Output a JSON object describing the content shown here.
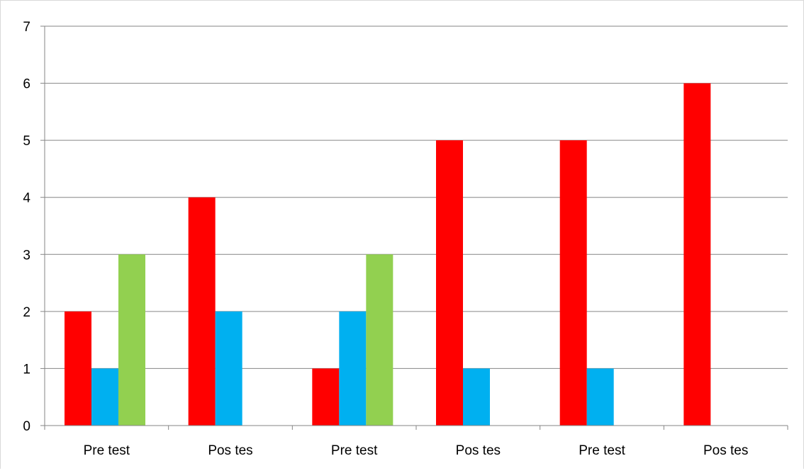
{
  "chart_data": {
    "type": "bar",
    "categories": [
      "Pre test",
      "Pos tes",
      "Pre test",
      "Pos tes",
      "Pre test",
      "Pos tes"
    ],
    "series": [
      {
        "color": "#ff0000",
        "values": [
          2,
          4,
          1,
          5,
          5,
          6
        ]
      },
      {
        "color": "#00b0f0",
        "values": [
          1,
          2,
          2,
          1,
          1,
          0
        ]
      },
      {
        "color": "#92d050",
        "values": [
          3,
          0,
          3,
          0,
          0,
          0
        ]
      }
    ],
    "ylim": [
      0,
      7
    ],
    "yticks": [
      "0",
      "1",
      "2",
      "3",
      "4",
      "5",
      "6",
      "7"
    ],
    "grid": true,
    "legend": false
  }
}
